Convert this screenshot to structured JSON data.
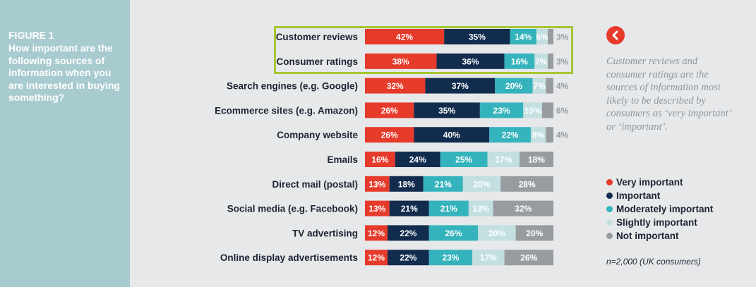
{
  "figure": {
    "label": "FIGURE 1",
    "title": "How important are the following sources of information when you are interested in buying something?"
  },
  "note": "Customer reviews and consumer ratings are the sources of information most likely to be described by consumers as ‘very important’ or ‘important’.",
  "footnote": "n=2,000 (UK consumers)",
  "colors": {
    "very_important": "#e63a2a",
    "important": "#122c4e",
    "moderately_important": "#35b3bd",
    "slightly_important": "#c3dfe0",
    "not_important": "#999c9f",
    "highlight_border": "#a7c730",
    "accent": "#e63a2a"
  },
  "icons": {
    "back": "chevron-left-icon"
  },
  "chart_data": {
    "type": "bar",
    "orientation": "horizontal",
    "stacked": true,
    "categories": [
      "Customer reviews",
      "Consumer ratings",
      "Search engines (e.g. Google)",
      "Ecommerce sites (e.g. Amazon)",
      "Company website",
      "Emails",
      "Direct mail (postal)",
      "Social media (e.g. Facebook)",
      "TV advertising",
      "Online display advertisements"
    ],
    "series": [
      {
        "name": "Very important",
        "values": [
          42,
          38,
          32,
          26,
          26,
          16,
          13,
          13,
          12,
          12
        ]
      },
      {
        "name": "Important",
        "values": [
          35,
          36,
          37,
          35,
          40,
          24,
          18,
          21,
          22,
          22
        ]
      },
      {
        "name": "Moderately important",
        "values": [
          14,
          16,
          20,
          23,
          22,
          25,
          21,
          21,
          26,
          23
        ]
      },
      {
        "name": "Slightly important",
        "values": [
          6,
          7,
          7,
          10,
          8,
          17,
          20,
          13,
          20,
          17
        ]
      },
      {
        "name": "Not important",
        "values": [
          3,
          3,
          4,
          6,
          4,
          18,
          28,
          32,
          20,
          26
        ]
      }
    ],
    "unit": "%",
    "highlighted_categories": [
      "Customer reviews",
      "Consumer ratings"
    ],
    "legend_position": "right"
  }
}
